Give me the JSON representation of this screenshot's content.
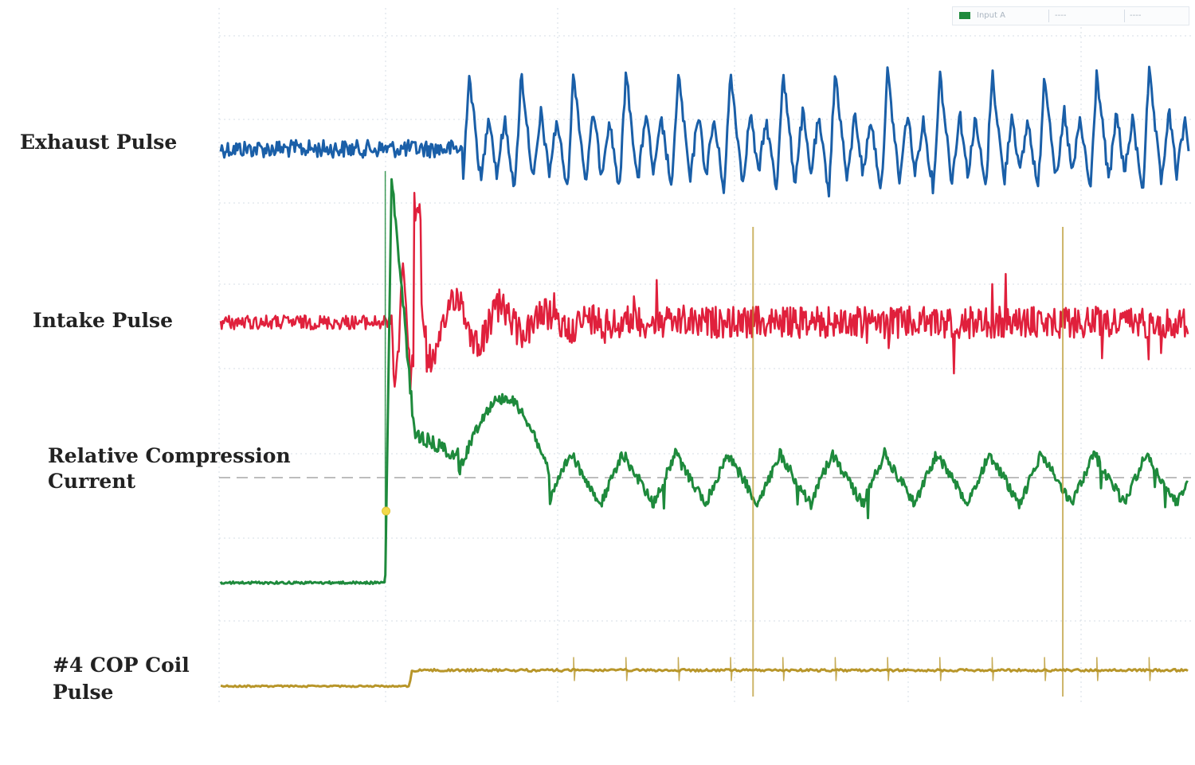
{
  "labels": {
    "exhaust": "Exhaust Pulse",
    "intake": "Intake Pulse",
    "compression_line1": "Relative Compression",
    "compression_line2": "Current",
    "cop_line1": "#4 COP Coil",
    "cop_line2": "Pulse"
  },
  "legend": {
    "entries": [
      "Input A",
      "----",
      "----"
    ],
    "swatch_color": "#1e8a3c"
  },
  "colors": {
    "exhaust": "#1a5fa8",
    "intake": "#e0203c",
    "compression": "#1e8a3c",
    "cop": "#b8962a",
    "grid": "#d5dde6",
    "reference": "#bdbdbd",
    "marker": "#f2d94a"
  },
  "chart_data": {
    "type": "line",
    "title": "",
    "xlabel": "",
    "ylabel": "",
    "grid": true,
    "legend_position": "top-right",
    "x_range": [
      0,
      100
    ],
    "event_time": 17,
    "cop_spike_times": [
      55,
      87
    ],
    "series": [
      {
        "name": "Exhaust Pulse",
        "color": "#1a5fa8",
        "baseline": 0.0,
        "onset": 25,
        "amplitude": 1.0,
        "cycle": 5.4
      },
      {
        "name": "Intake Pulse",
        "color": "#e0203c",
        "baseline": 0.0,
        "onset": 18,
        "amplitude": 0.7,
        "cycle": 5.4
      },
      {
        "name": "Relative Compression Current",
        "color": "#1e8a3c",
        "baseline": -1.4,
        "onset": 17,
        "level": 0.2,
        "amplitude": 0.6,
        "cycle": 5.4
      },
      {
        "name": "#4 COP Coil Pulse",
        "color": "#b8962a",
        "baseline": 0.0,
        "onset": 19.5,
        "level": 0.3
      }
    ]
  }
}
